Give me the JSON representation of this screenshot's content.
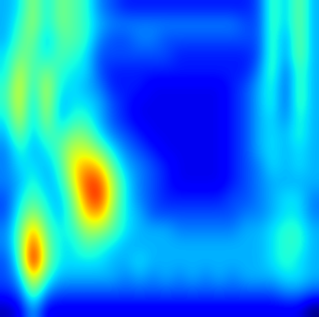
{
  "chart_data": {
    "type": "heatmap",
    "color": "jet",
    "tick_labels": false,
    "cells": [
      [
        0.3,
        0.35,
        0.55,
        0.35,
        0.5,
        0.45,
        0.4,
        0.25,
        0.2,
        0.15,
        0.15,
        0.15,
        0.15,
        0.15,
        0.15,
        0.15,
        0.15,
        0.15,
        0.15,
        0.2,
        0.45,
        0.3,
        0.5,
        0.3
      ],
      [
        0.3,
        0.4,
        0.55,
        0.35,
        0.5,
        0.45,
        0.4,
        0.3,
        0.25,
        0.25,
        0.25,
        0.25,
        0.25,
        0.25,
        0.25,
        0.25,
        0.25,
        0.25,
        0.2,
        0.2,
        0.45,
        0.3,
        0.5,
        0.3
      ],
      [
        0.3,
        0.45,
        0.5,
        0.3,
        0.45,
        0.45,
        0.4,
        0.25,
        0.2,
        0.2,
        0.25,
        0.25,
        0.2,
        0.2,
        0.2,
        0.2,
        0.2,
        0.2,
        0.2,
        0.2,
        0.45,
        0.25,
        0.5,
        0.3
      ],
      [
        0.35,
        0.5,
        0.45,
        0.35,
        0.45,
        0.4,
        0.35,
        0.2,
        0.2,
        0.2,
        0.2,
        0.2,
        0.2,
        0.15,
        0.15,
        0.15,
        0.15,
        0.15,
        0.15,
        0.2,
        0.45,
        0.25,
        0.5,
        0.3
      ],
      [
        0.35,
        0.6,
        0.4,
        0.5,
        0.4,
        0.35,
        0.35,
        0.2,
        0.15,
        0.15,
        0.15,
        0.15,
        0.15,
        0.15,
        0.15,
        0.15,
        0.15,
        0.15,
        0.15,
        0.25,
        0.45,
        0.2,
        0.45,
        0.3
      ],
      [
        0.4,
        0.65,
        0.35,
        0.6,
        0.35,
        0.35,
        0.3,
        0.25,
        0.15,
        0.15,
        0.15,
        0.1,
        0.1,
        0.1,
        0.1,
        0.1,
        0.1,
        0.15,
        0.2,
        0.3,
        0.4,
        0.2,
        0.45,
        0.3
      ],
      [
        0.4,
        0.65,
        0.3,
        0.6,
        0.3,
        0.35,
        0.35,
        0.3,
        0.2,
        0.15,
        0.1,
        0.1,
        0.1,
        0.1,
        0.1,
        0.1,
        0.1,
        0.15,
        0.2,
        0.3,
        0.4,
        0.2,
        0.45,
        0.3
      ],
      [
        0.35,
        0.6,
        0.3,
        0.55,
        0.3,
        0.4,
        0.4,
        0.3,
        0.2,
        0.15,
        0.1,
        0.1,
        0.1,
        0.1,
        0.1,
        0.1,
        0.1,
        0.15,
        0.2,
        0.3,
        0.35,
        0.25,
        0.4,
        0.3
      ],
      [
        0.3,
        0.5,
        0.3,
        0.45,
        0.4,
        0.5,
        0.5,
        0.35,
        0.25,
        0.2,
        0.15,
        0.1,
        0.1,
        0.1,
        0.1,
        0.1,
        0.1,
        0.15,
        0.2,
        0.3,
        0.35,
        0.3,
        0.4,
        0.3
      ],
      [
        0.25,
        0.4,
        0.3,
        0.35,
        0.45,
        0.6,
        0.6,
        0.5,
        0.35,
        0.25,
        0.2,
        0.15,
        0.1,
        0.1,
        0.1,
        0.1,
        0.1,
        0.15,
        0.2,
        0.3,
        0.35,
        0.3,
        0.35,
        0.3
      ],
      [
        0.25,
        0.35,
        0.35,
        0.3,
        0.4,
        0.65,
        0.75,
        0.7,
        0.45,
        0.3,
        0.25,
        0.2,
        0.15,
        0.1,
        0.1,
        0.1,
        0.1,
        0.15,
        0.2,
        0.25,
        0.35,
        0.3,
        0.35,
        0.3
      ],
      [
        0.25,
        0.3,
        0.4,
        0.3,
        0.35,
        0.6,
        0.85,
        0.85,
        0.55,
        0.35,
        0.25,
        0.2,
        0.15,
        0.1,
        0.1,
        0.1,
        0.1,
        0.15,
        0.2,
        0.25,
        0.3,
        0.3,
        0.3,
        0.3
      ],
      [
        0.2,
        0.35,
        0.45,
        0.35,
        0.3,
        0.5,
        0.8,
        0.9,
        0.55,
        0.35,
        0.25,
        0.2,
        0.15,
        0.15,
        0.15,
        0.15,
        0.15,
        0.2,
        0.2,
        0.25,
        0.3,
        0.35,
        0.35,
        0.25
      ],
      [
        0.2,
        0.4,
        0.55,
        0.4,
        0.3,
        0.45,
        0.7,
        0.75,
        0.5,
        0.35,
        0.3,
        0.2,
        0.2,
        0.2,
        0.2,
        0.2,
        0.2,
        0.2,
        0.25,
        0.25,
        0.3,
        0.35,
        0.35,
        0.25
      ],
      [
        0.25,
        0.45,
        0.75,
        0.45,
        0.35,
        0.4,
        0.55,
        0.55,
        0.45,
        0.35,
        0.3,
        0.3,
        0.3,
        0.25,
        0.25,
        0.25,
        0.25,
        0.25,
        0.3,
        0.3,
        0.35,
        0.4,
        0.4,
        0.3
      ],
      [
        0.25,
        0.45,
        0.9,
        0.5,
        0.35,
        0.35,
        0.45,
        0.4,
        0.35,
        0.3,
        0.3,
        0.3,
        0.3,
        0.3,
        0.3,
        0.3,
        0.3,
        0.3,
        0.3,
        0.3,
        0.35,
        0.4,
        0.4,
        0.3
      ],
      [
        0.2,
        0.4,
        1.0,
        0.5,
        0.35,
        0.35,
        0.35,
        0.35,
        0.3,
        0.3,
        0.35,
        0.3,
        0.3,
        0.3,
        0.3,
        0.3,
        0.3,
        0.3,
        0.3,
        0.3,
        0.35,
        0.4,
        0.35,
        0.3
      ],
      [
        0.2,
        0.3,
        0.7,
        0.4,
        0.3,
        0.3,
        0.3,
        0.3,
        0.3,
        0.25,
        0.3,
        0.25,
        0.3,
        0.25,
        0.3,
        0.25,
        0.3,
        0.25,
        0.3,
        0.3,
        0.3,
        0.35,
        0.35,
        0.3
      ],
      [
        0.15,
        0.2,
        0.5,
        0.25,
        0.2,
        0.2,
        0.2,
        0.2,
        0.2,
        0.2,
        0.2,
        0.2,
        0.2,
        0.2,
        0.2,
        0.2,
        0.2,
        0.2,
        0.2,
        0.2,
        0.2,
        0.25,
        0.25,
        0.2
      ],
      [
        0.05,
        0.1,
        0.3,
        0.1,
        0.1,
        0.1,
        0.1,
        0.1,
        0.1,
        0.1,
        0.1,
        0.1,
        0.1,
        0.1,
        0.1,
        0.1,
        0.1,
        0.1,
        0.1,
        0.1,
        0.1,
        0.1,
        0.1,
        0.0
      ]
    ]
  }
}
